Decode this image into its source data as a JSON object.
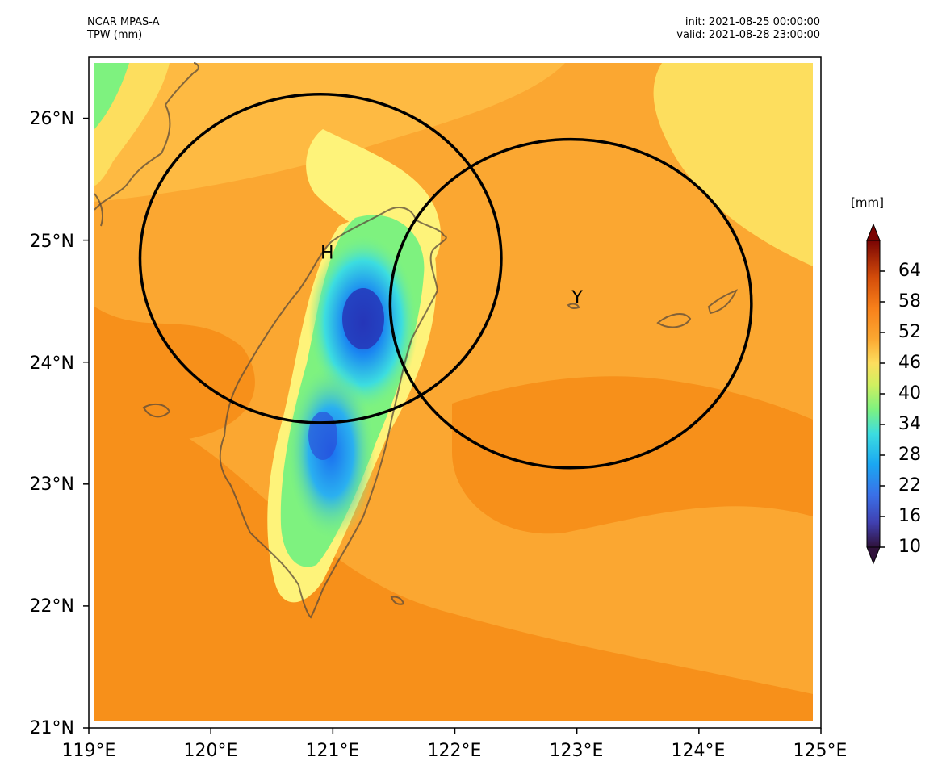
{
  "header": {
    "model": "NCAR MPAS-A",
    "variable": "TPW (mm)",
    "init": "init: 2021-08-25 00:00:00",
    "valid": "valid: 2021-08-28 23:00:00"
  },
  "axes": {
    "lat_ticks": [
      "26°N",
      "25°N",
      "24°N",
      "23°N",
      "22°N",
      "21°N"
    ],
    "lon_ticks": [
      "119°E",
      "120°E",
      "121°E",
      "122°E",
      "123°E",
      "124°E",
      "125°E"
    ]
  },
  "map": {
    "extent": {
      "lon": [
        119,
        125
      ],
      "lat": [
        21,
        26.5
      ]
    },
    "circles": [
      {
        "label": "H",
        "center_lon": 120.9,
        "center_lat": 24.85,
        "radius_lon_deg": 1.48
      },
      {
        "label": "Y",
        "center_lon": 122.95,
        "center_lat": 24.48,
        "radius_lon_deg": 1.48
      }
    ]
  },
  "colorbar": {
    "unit": "[mm]",
    "range": [
      10,
      70
    ],
    "tick_labels": [
      "10",
      "16",
      "22",
      "28",
      "34",
      "40",
      "46",
      "52",
      "58",
      "64"
    ],
    "colors": {
      "orange_dark": "#f7901a",
      "orange": "#fba731",
      "orange_light": "#feba42",
      "yellow": "#fdde5e",
      "yellow_light": "#fef37a",
      "green": "#7ef27f",
      "cyan": "#3cdde0",
      "blue": "#1a85f2",
      "blue_dark": "#3040c8",
      "red_dark": "#7a0403"
    }
  }
}
